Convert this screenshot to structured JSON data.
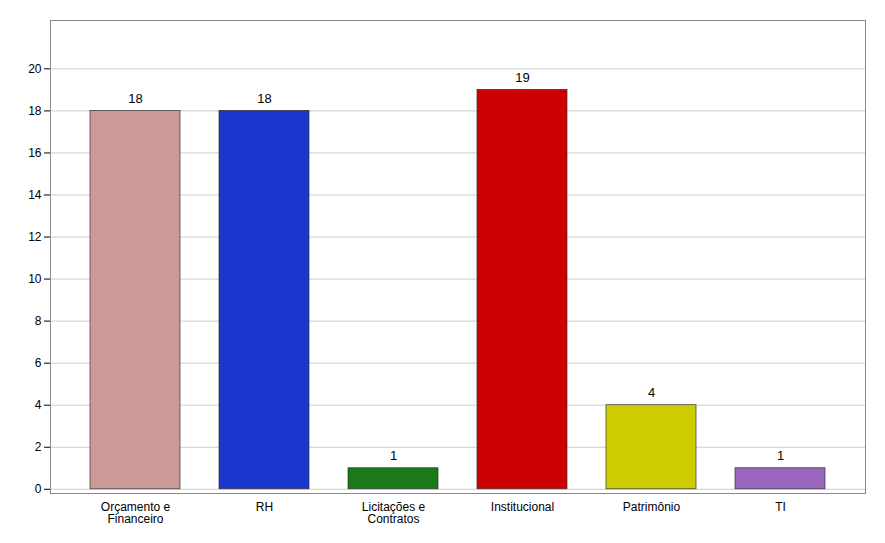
{
  "chart_data": {
    "type": "bar",
    "categories": [
      "Orçamento e\nFinanceiro",
      "RH",
      "Licitações e\nContratos",
      "Institucional",
      "Patrimônio",
      "TI"
    ],
    "values": [
      18,
      18,
      1,
      19,
      4,
      1
    ],
    "colors": [
      "#cc9999",
      "#1a35cc",
      "#1a7a1a",
      "#cc0000",
      "#cccc00",
      "#9966bb"
    ],
    "ylim": [
      -0.2,
      22.3
    ],
    "yticks": [
      0,
      2,
      4,
      6,
      8,
      10,
      12,
      14,
      16,
      18,
      20
    ],
    "grid": true,
    "data_labels": true
  }
}
